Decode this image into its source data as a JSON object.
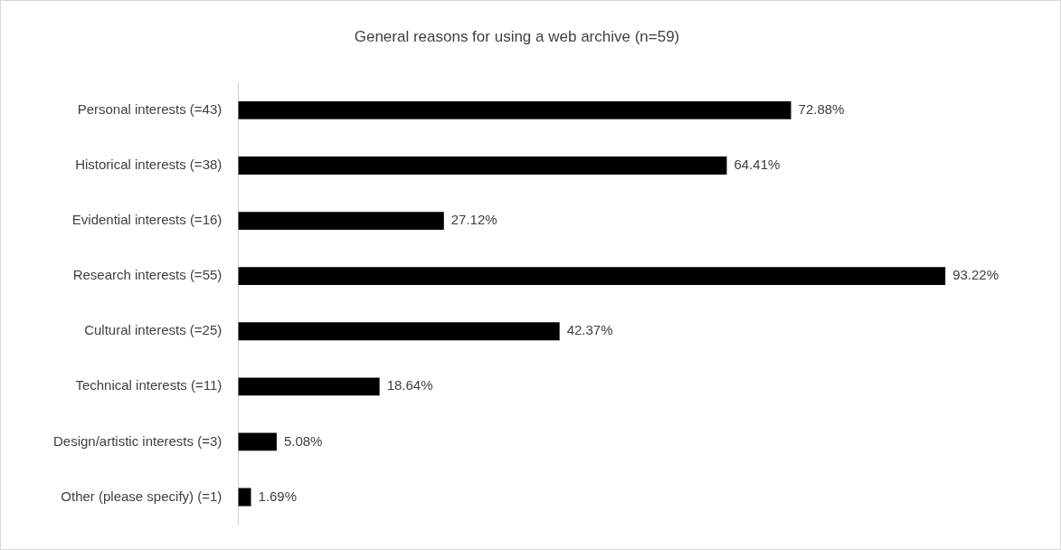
{
  "chart_data": {
    "type": "bar",
    "orientation": "horizontal",
    "title": "General reasons for using a web archive (n=59)",
    "categories": [
      "Personal interests (=43)",
      "Historical interests (=38)",
      "Evidential interests (=16)",
      "Research interests (=55)",
      "Cultural interests (=25)",
      "Technical interests (=11)",
      "Design/artistic interests (=3)",
      "Other (please specify) (=1)"
    ],
    "values": [
      72.88,
      64.41,
      27.12,
      93.22,
      42.37,
      18.64,
      5.08,
      1.69
    ],
    "value_labels": [
      "72.88%",
      "64.41%",
      "27.12%",
      "93.22%",
      "42.37%",
      "18.64%",
      "5.08%",
      "1.69%"
    ],
    "color": "#000000",
    "tick_labels": "y",
    "grid": false,
    "legend": false
  }
}
